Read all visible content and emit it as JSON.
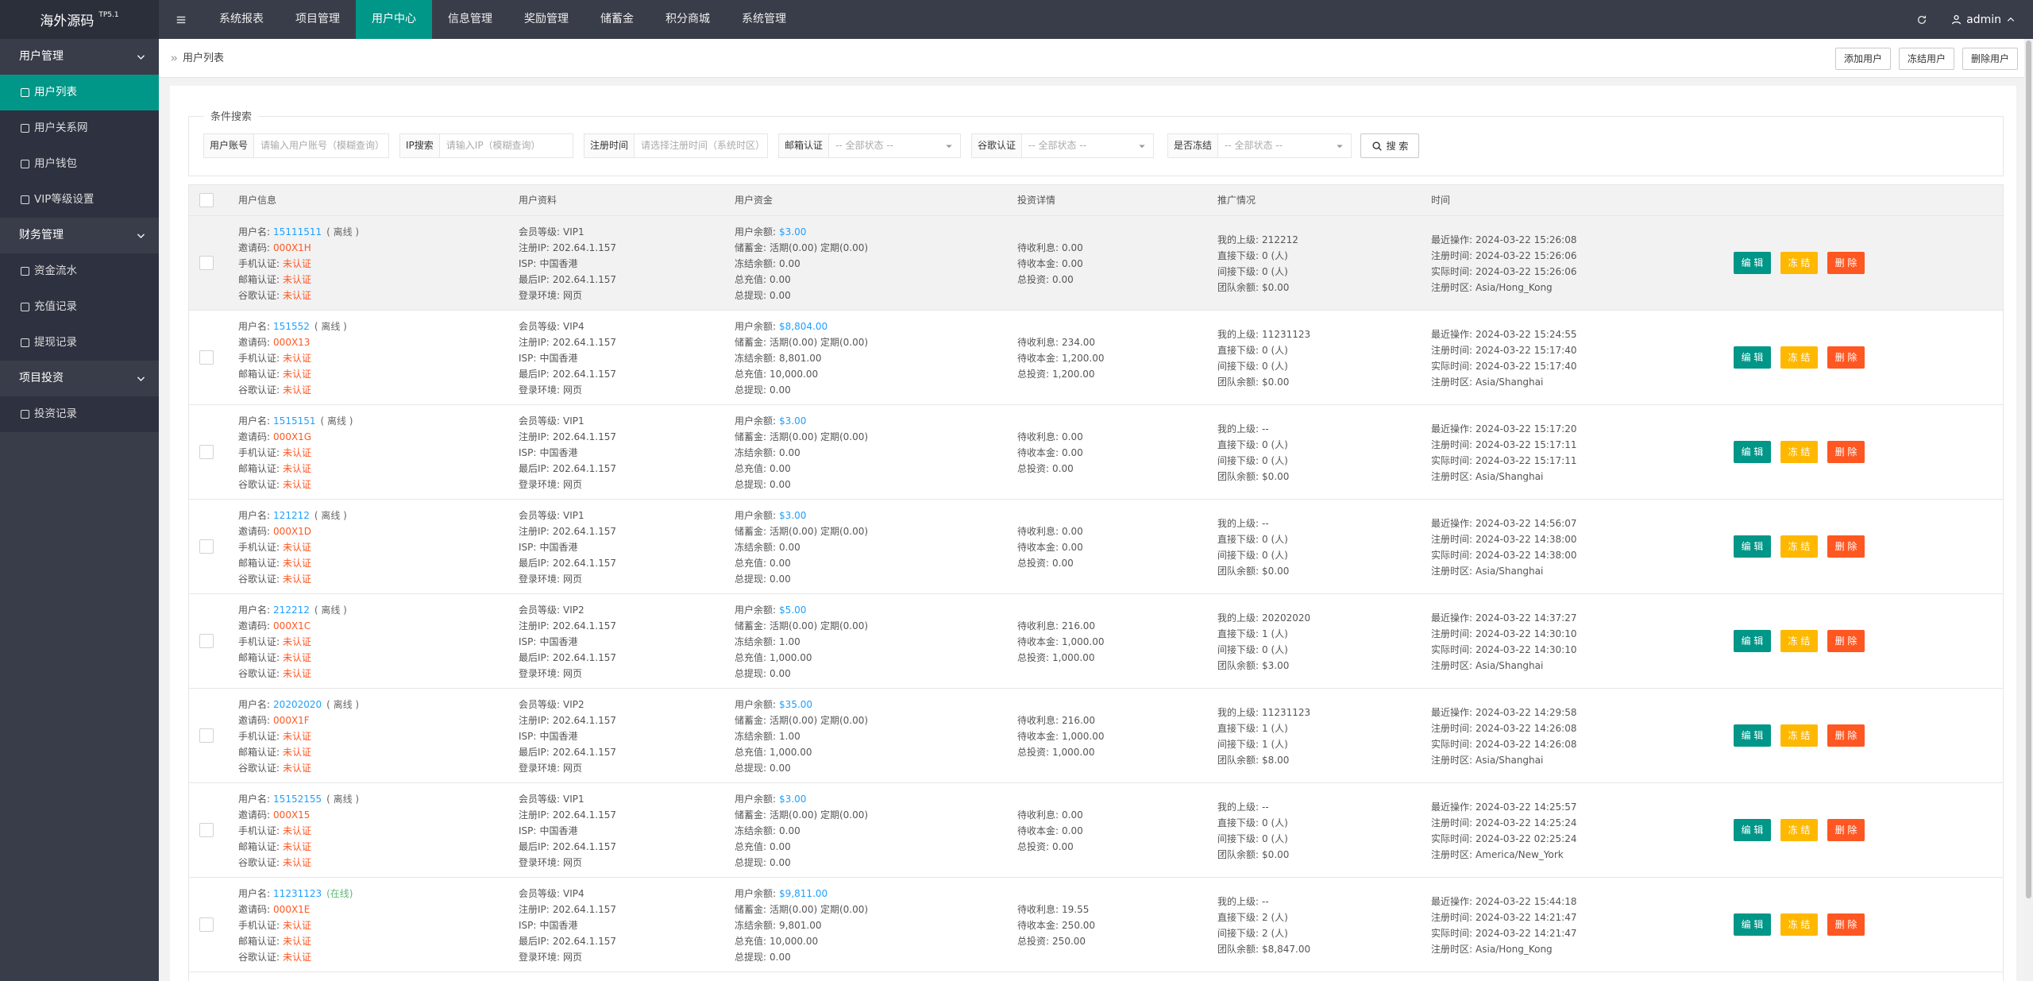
{
  "topbar": {
    "logo": "海外源码",
    "version": "TP5.1",
    "menu": [
      "系统报表",
      "项目管理",
      "用户中心",
      "信息管理",
      "奖励管理",
      "储蓄金",
      "积分商城",
      "系统管理"
    ],
    "active": 2,
    "user": "admin"
  },
  "sidebar": {
    "groups": [
      {
        "title": "用户管理",
        "items": [
          "用户列表",
          "用户关系网",
          "用户钱包",
          "VIP等级设置"
        ]
      },
      {
        "title": "财务管理",
        "items": [
          "资金流水",
          "充值记录",
          "提现记录"
        ]
      },
      {
        "title": "项目投资",
        "items": [
          "投资记录"
        ]
      }
    ]
  },
  "breadcrumb": {
    "tab": "用户列表",
    "actions": [
      "添加用户",
      "冻结用户",
      "删除用户"
    ]
  },
  "search": {
    "legend": "条件搜索",
    "fields": [
      {
        "label": "用户账号",
        "placeholder": "请输入用户账号（模糊查询）"
      },
      {
        "label": "IP搜索",
        "placeholder": "请输入IP（模糊查询）"
      },
      {
        "label": "注册时间",
        "placeholder": "请选择注册时间（系统时区）"
      },
      {
        "label": "邮箱认证",
        "placeholder": "-- 全部状态 --"
      },
      {
        "label": "谷歌认证",
        "placeholder": "-- 全部状态 --"
      },
      {
        "label": "是否冻结",
        "placeholder": "-- 全部状态 --"
      }
    ],
    "button": "搜 索"
  },
  "table": {
    "headers": [
      "用户信息",
      "用户资料",
      "用户资金",
      "投资详情",
      "推广情况",
      "时间"
    ],
    "labels": {
      "info": [
        "用户名:",
        "邀请码:",
        "手机认证:",
        "邮箱认证:",
        "谷歌认证:"
      ],
      "profile": [
        "会员等级:",
        "注册IP:",
        "ISP:",
        "最后IP:",
        "登录环境:"
      ],
      "funds": [
        "用户余额:",
        "储蓄金:",
        "冻结余额:",
        "总充值:",
        "总提现:"
      ],
      "invest": [
        "待收利息:",
        "待收本金:",
        "总投资:"
      ],
      "promo": [
        "我的上级:",
        "直接下级:",
        "间接下级:",
        "团队余额:"
      ],
      "time": [
        "最近操作:",
        "注册时间:",
        "实际时间:",
        "注册时区:"
      ]
    },
    "actions": [
      "编 辑",
      "冻 结",
      "删 除"
    ],
    "rows": [
      {
        "info": [
          "15111511",
          "( 离线 )",
          "000X1H",
          "未认证",
          "未认证",
          "未认证"
        ],
        "status_color": "#666666",
        "profile": [
          "VIP1",
          "202.64.1.157",
          "中国香港",
          "202.64.1.157",
          "网页"
        ],
        "funds": [
          "$3.00",
          "活期(0.00) 定期(0.00)",
          "0.00",
          "0.00",
          "0.00"
        ],
        "invest": [
          "0.00",
          "0.00",
          "0.00"
        ],
        "promo": [
          "212212",
          "0 (人)",
          "0 (人)",
          "$0.00"
        ],
        "time": [
          "2024-03-22 15:26:08",
          "2024-03-22 15:26:06",
          "2024-03-22 15:26:06",
          "Asia/Hong_Kong"
        ]
      },
      {
        "info": [
          "151552",
          "( 离线 )",
          "000X13",
          "未认证",
          "未认证",
          "未认证"
        ],
        "status_color": "#666666",
        "profile": [
          "VIP4",
          "202.64.1.157",
          "中国香港",
          "202.64.1.157",
          "网页"
        ],
        "funds": [
          "$8,804.00",
          "活期(0.00) 定期(0.00)",
          "8,801.00",
          "10,000.00",
          "0.00"
        ],
        "invest": [
          "234.00",
          "1,200.00",
          "1,200.00"
        ],
        "promo": [
          "11231123",
          "0 (人)",
          "0 (人)",
          "$0.00"
        ],
        "time": [
          "2024-03-22 15:24:55",
          "2024-03-22 15:17:40",
          "2024-03-22 15:17:40",
          "Asia/Shanghai"
        ]
      },
      {
        "info": [
          "1515151",
          "( 离线 )",
          "000X1G",
          "未认证",
          "未认证",
          "未认证"
        ],
        "status_color": "#666666",
        "profile": [
          "VIP1",
          "202.64.1.157",
          "中国香港",
          "202.64.1.157",
          "网页"
        ],
        "funds": [
          "$3.00",
          "活期(0.00) 定期(0.00)",
          "0.00",
          "0.00",
          "0.00"
        ],
        "invest": [
          "0.00",
          "0.00",
          "0.00"
        ],
        "promo": [
          "--",
          "0 (人)",
          "0 (人)",
          "$0.00"
        ],
        "time": [
          "2024-03-22 15:17:20",
          "2024-03-22 15:17:11",
          "2024-03-22 15:17:11",
          "Asia/Shanghai"
        ]
      },
      {
        "info": [
          "121212",
          "( 离线 )",
          "000X1D",
          "未认证",
          "未认证",
          "未认证"
        ],
        "status_color": "#666666",
        "profile": [
          "VIP1",
          "202.64.1.157",
          "中国香港",
          "202.64.1.157",
          "网页"
        ],
        "funds": [
          "$3.00",
          "活期(0.00) 定期(0.00)",
          "0.00",
          "0.00",
          "0.00"
        ],
        "invest": [
          "0.00",
          "0.00",
          "0.00"
        ],
        "promo": [
          "--",
          "0 (人)",
          "0 (人)",
          "$0.00"
        ],
        "time": [
          "2024-03-22 14:56:07",
          "2024-03-22 14:38:00",
          "2024-03-22 14:38:00",
          "Asia/Shanghai"
        ]
      },
      {
        "info": [
          "212212",
          "( 离线 )",
          "000X1C",
          "未认证",
          "未认证",
          "未认证"
        ],
        "status_color": "#666666",
        "profile": [
          "VIP2",
          "202.64.1.157",
          "中国香港",
          "202.64.1.157",
          "网页"
        ],
        "funds": [
          "$5.00",
          "活期(0.00) 定期(0.00)",
          "1.00",
          "1,000.00",
          "0.00"
        ],
        "invest": [
          "216.00",
          "1,000.00",
          "1,000.00"
        ],
        "promo": [
          "20202020",
          "1 (人)",
          "0 (人)",
          "$3.00"
        ],
        "time": [
          "2024-03-22 14:37:27",
          "2024-03-22 14:30:10",
          "2024-03-22 14:30:10",
          "Asia/Shanghai"
        ]
      },
      {
        "info": [
          "20202020",
          "( 离线 )",
          "000X1F",
          "未认证",
          "未认证",
          "未认证"
        ],
        "status_color": "#666666",
        "profile": [
          "VIP2",
          "202.64.1.157",
          "中国香港",
          "202.64.1.157",
          "网页"
        ],
        "funds": [
          "$35.00",
          "活期(0.00) 定期(0.00)",
          "1.00",
          "1,000.00",
          "0.00"
        ],
        "invest": [
          "216.00",
          "1,000.00",
          "1,000.00"
        ],
        "promo": [
          "11231123",
          "1 (人)",
          "1 (人)",
          "$8.00"
        ],
        "time": [
          "2024-03-22 14:29:58",
          "2024-03-22 14:26:08",
          "2024-03-22 14:26:08",
          "Asia/Shanghai"
        ]
      },
      {
        "info": [
          "15152155",
          "( 离线 )",
          "000X15",
          "未认证",
          "未认证",
          "未认证"
        ],
        "status_color": "#666666",
        "profile": [
          "VIP1",
          "202.64.1.157",
          "中国香港",
          "202.64.1.157",
          "网页"
        ],
        "funds": [
          "$3.00",
          "活期(0.00) 定期(0.00)",
          "0.00",
          "0.00",
          "0.00"
        ],
        "invest": [
          "0.00",
          "0.00",
          "0.00"
        ],
        "promo": [
          "--",
          "0 (人)",
          "0 (人)",
          "$0.00"
        ],
        "time": [
          "2024-03-22 14:25:57",
          "2024-03-22 14:25:24",
          "2024-03-22 02:25:24",
          "America/New_York"
        ]
      },
      {
        "info": [
          "11231123",
          "(在线)",
          "000X1E",
          "未认证",
          "未认证",
          "未认证"
        ],
        "status_color": "#5FB878",
        "profile": [
          "VIP4",
          "202.64.1.157",
          "中国香港",
          "202.64.1.157",
          "网页"
        ],
        "funds": [
          "$9,811.00",
          "活期(0.00) 定期(0.00)",
          "9,801.00",
          "10,000.00",
          "0.00"
        ],
        "invest": [
          "19.55",
          "250.00",
          "250.00"
        ],
        "promo": [
          "--",
          "2 (人)",
          "2 (人)",
          "$8,847.00"
        ],
        "time": [
          "2024-03-22 15:44:18",
          "2024-03-22 14:21:47",
          "2024-03-22 14:21:47",
          "Asia/Hong_Kong"
        ]
      }
    ]
  }
}
